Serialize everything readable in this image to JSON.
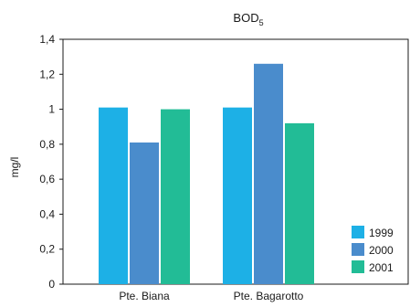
{
  "chart_data": {
    "type": "bar",
    "title": "BOD",
    "title_subscript": "5",
    "ylabel": "mg/l",
    "xlabel": "",
    "ylim": [
      0,
      1.4
    ],
    "yticks": [
      "0",
      "0,2",
      "0,4",
      "0,6",
      "0,8",
      "1",
      "1,2",
      "1,4"
    ],
    "categories": [
      "Pte. Biana",
      "Pte. Bagarotto"
    ],
    "series": [
      {
        "name": "1999",
        "color": "#1db0e6",
        "values": [
          1.01,
          1.01
        ]
      },
      {
        "name": "2000",
        "color": "#4a8ccc",
        "values": [
          0.81,
          1.26
        ]
      },
      {
        "name": "2001",
        "color": "#22bc96",
        "values": [
          1.0,
          0.92
        ]
      }
    ],
    "grid": false,
    "legend_position": "bottom-right"
  }
}
